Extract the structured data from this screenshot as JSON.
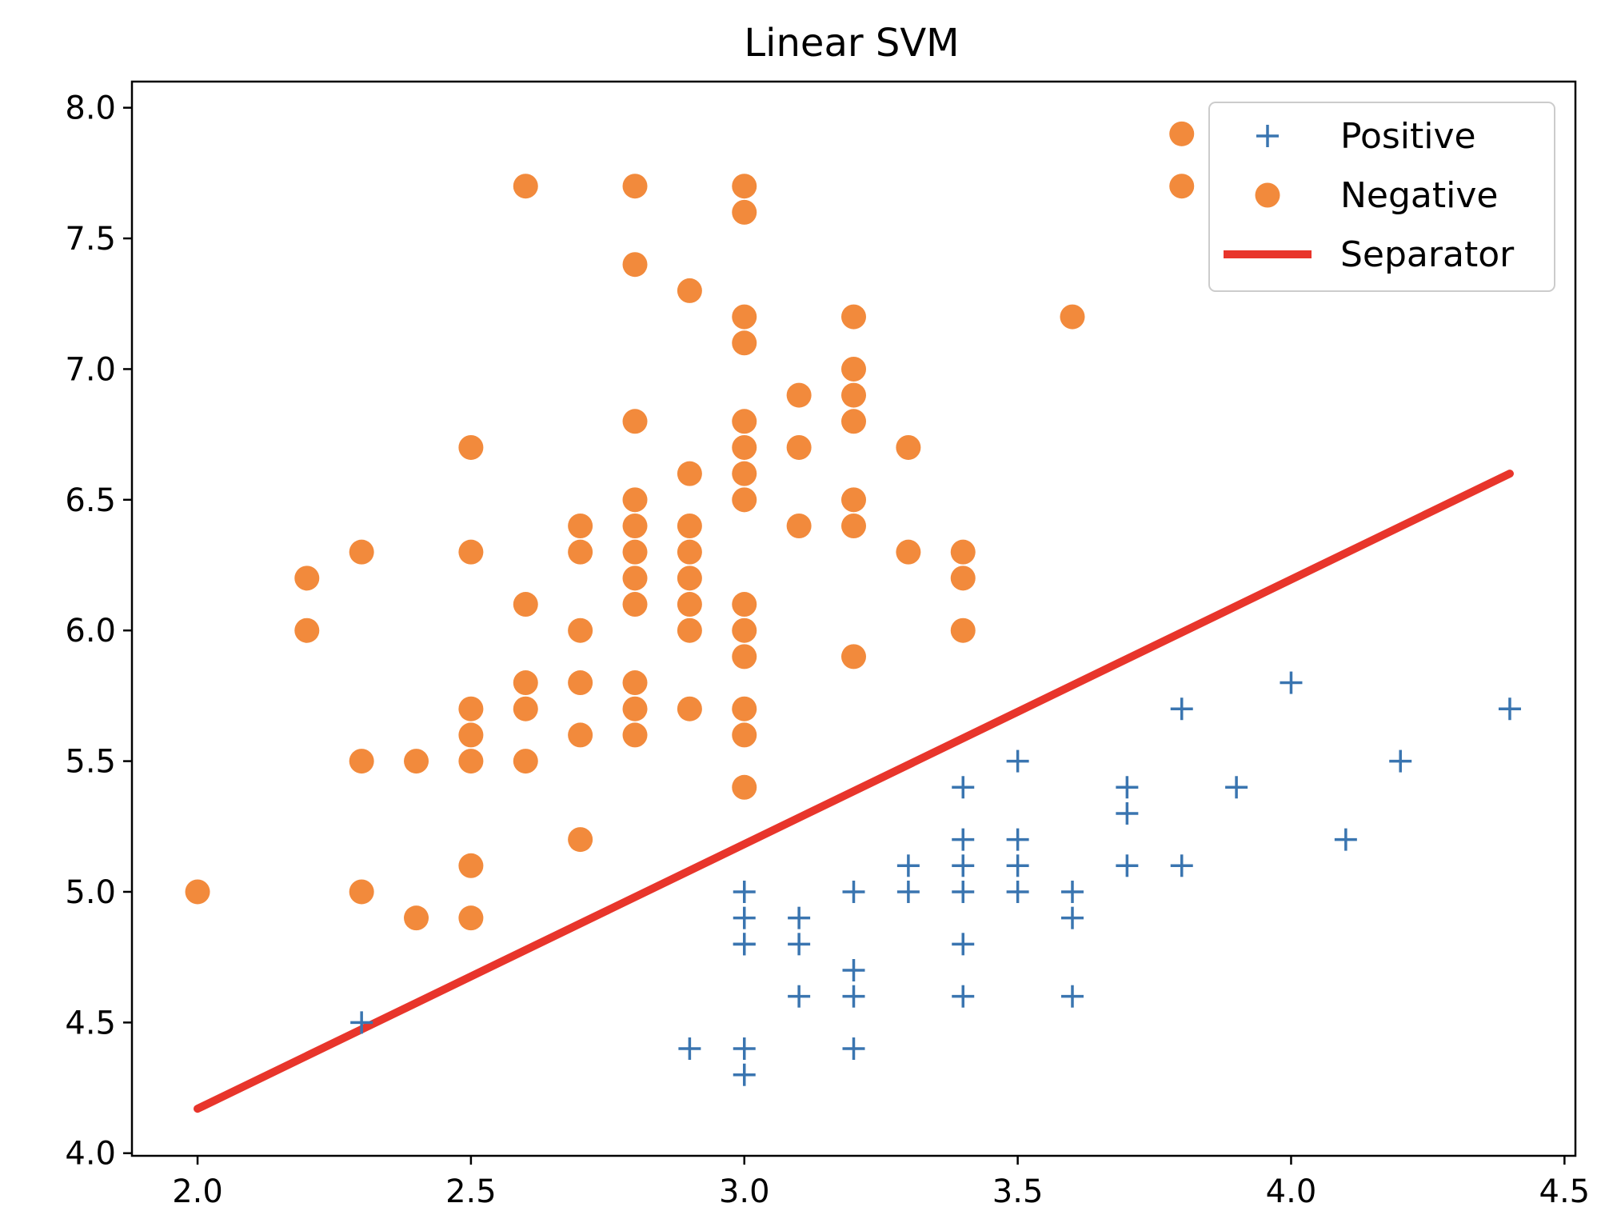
{
  "chart_data": {
    "type": "scatter",
    "title": "Linear SVM",
    "xlabel": "",
    "ylabel": "",
    "xlim": [
      1.88,
      4.52
    ],
    "ylim": [
      3.99,
      8.1
    ],
    "xticks": [
      2.0,
      2.5,
      3.0,
      3.5,
      4.0,
      4.5
    ],
    "xtick_labels": [
      "2.0",
      "2.5",
      "3.0",
      "3.5",
      "4.0",
      "4.5"
    ],
    "yticks": [
      4.0,
      4.5,
      5.0,
      5.5,
      6.0,
      6.5,
      7.0,
      7.5,
      8.0
    ],
    "ytick_labels": [
      "4.0",
      "4.5",
      "5.0",
      "5.5",
      "6.0",
      "6.5",
      "7.0",
      "7.5",
      "8.0"
    ],
    "grid": false,
    "legend_position": "top-right",
    "series": [
      {
        "name": "Positive",
        "marker": "plus",
        "color": "#3a75b0",
        "x": [
          2.3,
          2.9,
          3.0,
          3.0,
          3.0,
          3.0,
          3.0,
          3.0,
          3.1,
          3.1,
          3.1,
          3.2,
          3.2,
          3.2,
          3.2,
          3.3,
          3.3,
          3.4,
          3.4,
          3.4,
          3.4,
          3.4,
          3.4,
          3.5,
          3.5,
          3.5,
          3.5,
          3.6,
          3.6,
          3.6,
          3.7,
          3.7,
          3.7,
          3.8,
          3.8,
          3.9,
          4.0,
          4.1,
          4.2,
          4.4
        ],
        "y": [
          4.5,
          4.4,
          5.0,
          4.9,
          4.8,
          4.4,
          4.3,
          4.8,
          4.9,
          4.8,
          4.6,
          5.0,
          4.7,
          4.6,
          4.4,
          5.1,
          5.0,
          5.4,
          5.2,
          5.1,
          5.0,
          4.8,
          4.6,
          5.5,
          5.2,
          5.1,
          5.0,
          5.0,
          4.9,
          4.6,
          5.4,
          5.3,
          5.1,
          5.7,
          5.1,
          5.4,
          5.8,
          5.2,
          5.5,
          5.7
        ]
      },
      {
        "name": "Negative",
        "marker": "circle",
        "color": "#f28a3c",
        "x": [
          2.0,
          2.2,
          2.2,
          2.3,
          2.3,
          2.3,
          2.4,
          2.4,
          2.5,
          2.5,
          2.5,
          2.5,
          2.5,
          2.5,
          2.5,
          2.6,
          2.6,
          2.6,
          2.6,
          2.6,
          2.7,
          2.7,
          2.7,
          2.7,
          2.7,
          2.7,
          2.8,
          2.8,
          2.8,
          2.8,
          2.8,
          2.8,
          2.8,
          2.8,
          2.8,
          2.8,
          2.8,
          2.9,
          2.9,
          2.9,
          2.9,
          2.9,
          2.9,
          2.9,
          2.9,
          3.0,
          3.0,
          3.0,
          3.0,
          3.0,
          3.0,
          3.0,
          3.0,
          3.0,
          3.0,
          3.0,
          3.0,
          3.0,
          3.0,
          3.1,
          3.1,
          3.1,
          3.2,
          3.2,
          3.2,
          3.2,
          3.2,
          3.2,
          3.2,
          3.3,
          3.3,
          3.4,
          3.4,
          3.4,
          3.6,
          3.8,
          3.8
        ],
        "y": [
          5.0,
          6.2,
          6.0,
          6.3,
          5.5,
          5.0,
          5.5,
          4.9,
          6.7,
          6.3,
          5.7,
          5.6,
          5.5,
          5.1,
          4.9,
          7.7,
          6.1,
          5.8,
          5.7,
          5.5,
          6.4,
          6.3,
          6.0,
          5.8,
          5.6,
          5.2,
          7.7,
          7.4,
          6.8,
          6.5,
          6.4,
          6.3,
          6.2,
          6.1,
          5.8,
          5.7,
          5.6,
          7.3,
          6.6,
          6.4,
          6.3,
          6.2,
          6.1,
          6.0,
          5.7,
          7.7,
          7.6,
          7.2,
          7.1,
          6.8,
          6.7,
          6.6,
          6.5,
          6.1,
          6.0,
          5.9,
          5.7,
          5.6,
          5.4,
          6.9,
          6.7,
          6.4,
          7.2,
          7.0,
          6.9,
          6.8,
          6.5,
          6.4,
          5.9,
          6.7,
          6.3,
          6.3,
          6.2,
          6.0,
          7.2,
          7.9,
          7.7
        ]
      },
      {
        "name": "Separator",
        "marker": "line",
        "color": "#e8352b",
        "x": [
          2.0,
          4.4
        ],
        "y": [
          4.17,
          6.6
        ]
      }
    ]
  }
}
